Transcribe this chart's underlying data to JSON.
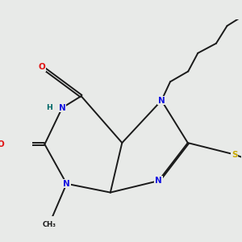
{
  "background_color": "#e8eae8",
  "colors": {
    "bond": "#1a1a1a",
    "N": "#1414e0",
    "O": "#e01414",
    "S": "#c8a800",
    "H": "#006868",
    "C": "#1a1a1a"
  },
  "bond_lw": 1.4,
  "font_size": 7.5,
  "figsize": [
    3.0,
    3.0
  ],
  "dpi": 100
}
